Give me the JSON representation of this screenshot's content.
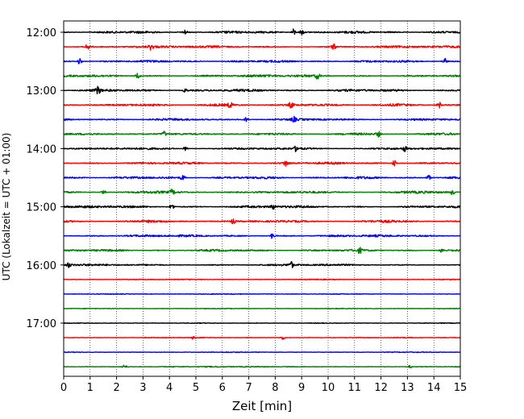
{
  "chart_data": {
    "type": "line",
    "title": "",
    "xlabel": "Zeit  [min]",
    "ylabel": "UTC (Lokalzeit = UTC + 01:00)",
    "xlim": [
      0,
      15
    ],
    "x_ticks": [
      "0",
      "1",
      "2",
      "3",
      "4",
      "5",
      "6",
      "7",
      "8",
      "9",
      "10",
      "11",
      "12",
      "13",
      "14",
      "15"
    ],
    "y_ticks": [
      "12:00",
      "13:00",
      "14:00",
      "15:00",
      "16:00",
      "17:00"
    ],
    "grid": "vertical dotted",
    "colors": [
      "#000000",
      "#ff0000",
      "#0000ff",
      "#008000"
    ],
    "traces": [
      {
        "start": "12:00",
        "color": "#000000",
        "amplitude": 0.9,
        "events": [
          {
            "t": 8.7,
            "a": 2.6
          },
          {
            "t": 9.0,
            "a": 2.2
          },
          {
            "t": 4.6,
            "a": 1.8
          }
        ]
      },
      {
        "start": "12:15",
        "color": "#ff0000",
        "amplitude": 0.8,
        "events": [
          {
            "t": 0.9,
            "a": 2.0
          },
          {
            "t": 3.3,
            "a": 2.0
          },
          {
            "t": 10.2,
            "a": 2.2
          }
        ]
      },
      {
        "start": "12:30",
        "color": "#0000ff",
        "amplitude": 0.8,
        "events": [
          {
            "t": 0.6,
            "a": 2.6
          },
          {
            "t": 14.4,
            "a": 2.4
          }
        ]
      },
      {
        "start": "12:45",
        "color": "#008000",
        "amplitude": 0.9,
        "events": [
          {
            "t": 2.8,
            "a": 2.2
          },
          {
            "t": 9.6,
            "a": 2.0
          }
        ]
      },
      {
        "start": "13:00",
        "color": "#000000",
        "amplitude": 0.9,
        "events": [
          {
            "t": 1.3,
            "a": 2.6
          },
          {
            "t": 4.6,
            "a": 1.4
          }
        ]
      },
      {
        "start": "13:15",
        "color": "#ff0000",
        "amplitude": 0.9,
        "events": [
          {
            "t": 6.3,
            "a": 2.0
          },
          {
            "t": 8.6,
            "a": 2.2
          },
          {
            "t": 14.2,
            "a": 2.6
          }
        ]
      },
      {
        "start": "13:30",
        "color": "#0000ff",
        "amplitude": 0.8,
        "events": [
          {
            "t": 6.9,
            "a": 1.8
          },
          {
            "t": 8.7,
            "a": 1.8
          }
        ]
      },
      {
        "start": "13:45",
        "color": "#008000",
        "amplitude": 0.8,
        "events": [
          {
            "t": 3.8,
            "a": 1.8
          },
          {
            "t": 11.9,
            "a": 2.0
          }
        ]
      },
      {
        "start": "14:00",
        "color": "#000000",
        "amplitude": 0.8,
        "events": [
          {
            "t": 4.6,
            "a": 1.6
          },
          {
            "t": 8.8,
            "a": 2.0
          },
          {
            "t": 12.9,
            "a": 1.8
          }
        ]
      },
      {
        "start": "14:15",
        "color": "#ff0000",
        "amplitude": 0.8,
        "events": [
          {
            "t": 8.4,
            "a": 2.4
          },
          {
            "t": 12.5,
            "a": 2.2
          }
        ]
      },
      {
        "start": "14:30",
        "color": "#0000ff",
        "amplitude": 0.9,
        "events": [
          {
            "t": 4.5,
            "a": 2.0
          },
          {
            "t": 13.8,
            "a": 2.0
          }
        ]
      },
      {
        "start": "14:45",
        "color": "#008000",
        "amplitude": 0.9,
        "events": [
          {
            "t": 1.5,
            "a": 1.8
          },
          {
            "t": 4.1,
            "a": 2.0
          },
          {
            "t": 14.7,
            "a": 1.8
          }
        ]
      },
      {
        "start": "15:00",
        "color": "#000000",
        "amplitude": 0.9,
        "events": [
          {
            "t": 4.1,
            "a": 2.4
          },
          {
            "t": 7.9,
            "a": 1.8
          }
        ]
      },
      {
        "start": "15:15",
        "color": "#ff0000",
        "amplitude": 0.9,
        "events": [
          {
            "t": 6.4,
            "a": 1.8
          }
        ]
      },
      {
        "start": "15:30",
        "color": "#0000ff",
        "amplitude": 0.8,
        "events": [
          {
            "t": 7.9,
            "a": 2.4
          }
        ]
      },
      {
        "start": "15:45",
        "color": "#008000",
        "amplitude": 0.8,
        "events": [
          {
            "t": 11.2,
            "a": 1.8
          },
          {
            "t": 14.3,
            "a": 1.8
          }
        ]
      },
      {
        "start": "16:00",
        "color": "#000000",
        "amplitude": 0.7,
        "events": [
          {
            "t": 0.2,
            "a": 1.8
          },
          {
            "t": 8.6,
            "a": 2.4
          }
        ]
      },
      {
        "start": "16:15",
        "color": "#ff0000",
        "amplitude": 0.35,
        "events": []
      },
      {
        "start": "16:30",
        "color": "#0000ff",
        "amplitude": 0.3,
        "events": []
      },
      {
        "start": "16:45",
        "color": "#008000",
        "amplitude": 0.3,
        "events": []
      },
      {
        "start": "17:00",
        "color": "#000000",
        "amplitude": 0.25,
        "events": []
      },
      {
        "start": "17:15",
        "color": "#ff0000",
        "amplitude": 0.3,
        "events": [
          {
            "t": 8.3,
            "a": 1.6
          },
          {
            "t": 4.9,
            "a": 0.8
          }
        ]
      },
      {
        "start": "17:30",
        "color": "#0000ff",
        "amplitude": 0.3,
        "events": []
      },
      {
        "start": "17:45",
        "color": "#008000",
        "amplitude": 0.4,
        "events": [
          {
            "t": 2.3,
            "a": 1.6
          },
          {
            "t": 13.1,
            "a": 1.0
          }
        ]
      }
    ]
  }
}
